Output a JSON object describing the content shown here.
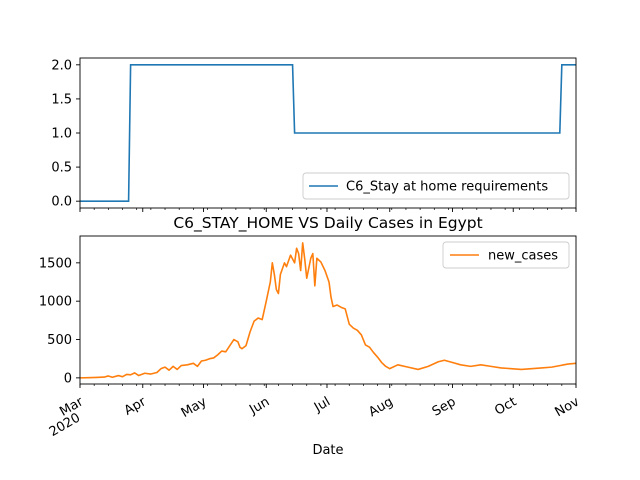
{
  "chart_data": [
    {
      "type": "line",
      "title": "",
      "xlabel": "",
      "ylabel": "",
      "ylim": [
        -0.1,
        2.1
      ],
      "yticks": [
        0.0,
        0.5,
        1.0,
        1.5,
        2.0
      ],
      "ytick_labels": [
        "0.0",
        "0.5",
        "1.0",
        "1.5",
        "2.0"
      ],
      "grid": false,
      "legend_position": "lower-right",
      "series": [
        {
          "name": "C6_Stay at home requirements",
          "color": "#1f77b4",
          "points": [
            [
              "2020-03-01",
              0
            ],
            [
              "2020-03-25",
              0
            ],
            [
              "2020-03-26",
              2
            ],
            [
              "2020-06-14",
              2
            ],
            [
              "2020-06-15",
              1
            ],
            [
              "2020-10-24",
              1
            ],
            [
              "2020-10-25",
              2
            ],
            [
              "2020-11-01",
              2
            ]
          ]
        }
      ]
    },
    {
      "type": "line",
      "title": "C6_STAY_HOME VS Daily Cases in Egypt",
      "xlabel": "Date",
      "ylabel": "",
      "ylim": [
        -80,
        1850
      ],
      "yticks": [
        0,
        500,
        1000,
        1500
      ],
      "ytick_labels": [
        "0",
        "500",
        "1000",
        "1500"
      ],
      "x_range": [
        "2020-03-01",
        "2020-11-01"
      ],
      "xticks": [
        {
          "date": "2020-03-01",
          "label": "Mar",
          "sublabel": "2020"
        },
        {
          "date": "2020-04-01",
          "label": "Apr"
        },
        {
          "date": "2020-05-01",
          "label": "May"
        },
        {
          "date": "2020-06-01",
          "label": "Jun"
        },
        {
          "date": "2020-07-01",
          "label": "Jul"
        },
        {
          "date": "2020-08-01",
          "label": "Aug"
        },
        {
          "date": "2020-09-01",
          "label": "Sep"
        },
        {
          "date": "2020-10-01",
          "label": "Oct"
        },
        {
          "date": "2020-11-01",
          "label": "Nov"
        }
      ],
      "grid": false,
      "legend_position": "top-right",
      "series": [
        {
          "name": "new_cases",
          "color": "#ff7f0e",
          "points": [
            [
              "2020-03-01",
              0
            ],
            [
              "2020-03-05",
              2
            ],
            [
              "2020-03-09",
              5
            ],
            [
              "2020-03-13",
              10
            ],
            [
              "2020-03-15",
              25
            ],
            [
              "2020-03-17",
              8
            ],
            [
              "2020-03-20",
              30
            ],
            [
              "2020-03-22",
              15
            ],
            [
              "2020-03-24",
              45
            ],
            [
              "2020-03-26",
              40
            ],
            [
              "2020-03-28",
              65
            ],
            [
              "2020-03-30",
              30
            ],
            [
              "2020-04-02",
              60
            ],
            [
              "2020-04-05",
              50
            ],
            [
              "2020-04-08",
              70
            ],
            [
              "2020-04-10",
              120
            ],
            [
              "2020-04-12",
              140
            ],
            [
              "2020-04-14",
              100
            ],
            [
              "2020-04-16",
              150
            ],
            [
              "2020-04-18",
              110
            ],
            [
              "2020-04-20",
              160
            ],
            [
              "2020-04-23",
              170
            ],
            [
              "2020-04-26",
              190
            ],
            [
              "2020-04-28",
              150
            ],
            [
              "2020-04-30",
              220
            ],
            [
              "2020-05-02",
              230
            ],
            [
              "2020-05-04",
              250
            ],
            [
              "2020-05-06",
              260
            ],
            [
              "2020-05-08",
              300
            ],
            [
              "2020-05-10",
              350
            ],
            [
              "2020-05-12",
              340
            ],
            [
              "2020-05-14",
              420
            ],
            [
              "2020-05-16",
              500
            ],
            [
              "2020-05-18",
              470
            ],
            [
              "2020-05-19",
              400
            ],
            [
              "2020-05-20",
              380
            ],
            [
              "2020-05-22",
              420
            ],
            [
              "2020-05-24",
              600
            ],
            [
              "2020-05-26",
              740
            ],
            [
              "2020-05-28",
              780
            ],
            [
              "2020-05-30",
              760
            ],
            [
              "2020-06-01",
              1000
            ],
            [
              "2020-06-03",
              1250
            ],
            [
              "2020-06-04",
              1500
            ],
            [
              "2020-06-05",
              1350
            ],
            [
              "2020-06-06",
              1150
            ],
            [
              "2020-06-07",
              1100
            ],
            [
              "2020-06-08",
              1350
            ],
            [
              "2020-06-10",
              1500
            ],
            [
              "2020-06-11",
              1450
            ],
            [
              "2020-06-13",
              1600
            ],
            [
              "2020-06-15",
              1500
            ],
            [
              "2020-06-16",
              1690
            ],
            [
              "2020-06-17",
              1620
            ],
            [
              "2020-06-18",
              1400
            ],
            [
              "2020-06-19",
              1760
            ],
            [
              "2020-06-20",
              1550
            ],
            [
              "2020-06-21",
              1300
            ],
            [
              "2020-06-23",
              1560
            ],
            [
              "2020-06-24",
              1620
            ],
            [
              "2020-06-25",
              1200
            ],
            [
              "2020-06-26",
              1560
            ],
            [
              "2020-06-28",
              1510
            ],
            [
              "2020-06-30",
              1400
            ],
            [
              "2020-07-02",
              1250
            ],
            [
              "2020-07-03",
              1050
            ],
            [
              "2020-07-04",
              930
            ],
            [
              "2020-07-06",
              950
            ],
            [
              "2020-07-08",
              920
            ],
            [
              "2020-07-10",
              900
            ],
            [
              "2020-07-12",
              700
            ],
            [
              "2020-07-14",
              650
            ],
            [
              "2020-07-16",
              620
            ],
            [
              "2020-07-18",
              560
            ],
            [
              "2020-07-20",
              430
            ],
            [
              "2020-07-22",
              400
            ],
            [
              "2020-07-24",
              330
            ],
            [
              "2020-07-26",
              270
            ],
            [
              "2020-07-28",
              200
            ],
            [
              "2020-07-30",
              150
            ],
            [
              "2020-08-01",
              120
            ],
            [
              "2020-08-05",
              170
            ],
            [
              "2020-08-10",
              140
            ],
            [
              "2020-08-15",
              110
            ],
            [
              "2020-08-20",
              150
            ],
            [
              "2020-08-25",
              210
            ],
            [
              "2020-08-28",
              230
            ],
            [
              "2020-09-01",
              200
            ],
            [
              "2020-09-05",
              170
            ],
            [
              "2020-09-10",
              150
            ],
            [
              "2020-09-15",
              170
            ],
            [
              "2020-09-20",
              150
            ],
            [
              "2020-09-25",
              130
            ],
            [
              "2020-09-30",
              120
            ],
            [
              "2020-10-05",
              110
            ],
            [
              "2020-10-10",
              120
            ],
            [
              "2020-10-15",
              130
            ],
            [
              "2020-10-20",
              140
            ],
            [
              "2020-10-24",
              160
            ],
            [
              "2020-10-26",
              170
            ],
            [
              "2020-10-28",
              180
            ],
            [
              "2020-11-01",
              190
            ]
          ]
        }
      ]
    }
  ]
}
